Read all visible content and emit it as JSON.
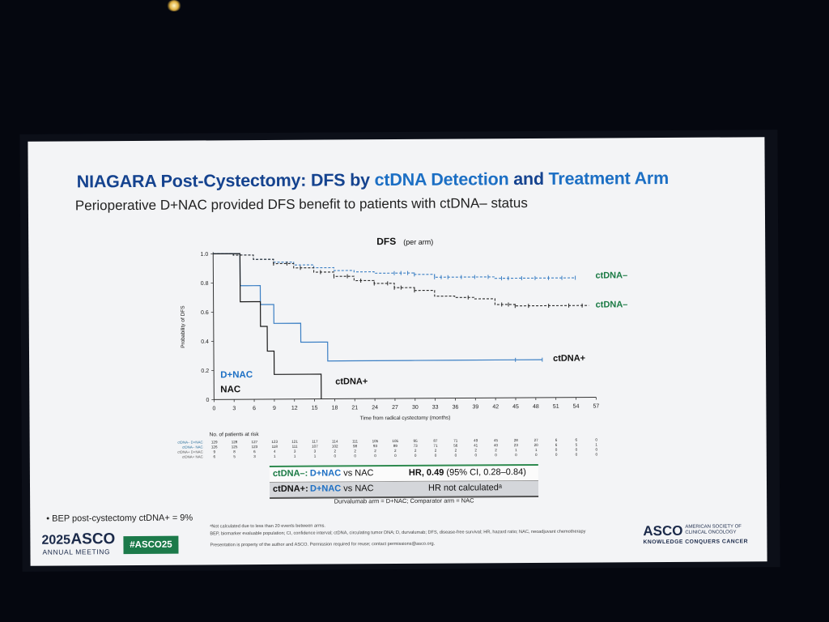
{
  "slide": {
    "title_a": "NIAGARA Post-Cystectomy: DFS by ",
    "title_b": "ctDNA Detection",
    "title_c": " and ",
    "title_d": "Treatment Arm",
    "subtitle": "Perioperative D+NAC provided DFS benefit to patients with ctDNA– status",
    "bullet": "• BEP post-cystectomy ctDNA+ = 9%",
    "footnote_1": "ᵃNot calculated due to less than 20 events between arms.",
    "footnote_2": "BEP, biomarker evaluable population; CI, confidence interval; ctDNA, circulating tumor DNA; D, durvalumab; DFS, disease-free survival; HR, hazard ratio; NAC, neoadjuvant chemotherapy",
    "footnote_3": "Presentation is property of the author and ASCO. Permission required for reuse; contact permissions@asco.org.",
    "logo_year": "2025",
    "logo_asco": "ASCO",
    "logo_meeting": "ANNUAL MEETING",
    "hashtag": "#ASCO25",
    "logo_right_asco": "ASCO",
    "logo_right_society_1": "AMERICAN SOCIETY OF",
    "logo_right_society_2": "CLINICAL ONCOLOGY",
    "logo_right_tagline": "KNOWLEDGE CONQUERS CANCER",
    "colors": {
      "title": "#15438f",
      "dnac_blue": "#1c6fc4",
      "ctdna_neg_green": "#1a7a44",
      "nac_dark": "#2a2a2a",
      "hashtag_bg": "#1c7a4a"
    }
  },
  "comparison": {
    "row1_label": "ctDNA–:",
    "row1_arm": " D+NAC",
    "row1_vs": " vs NAC",
    "row1_hr_label": "HR, ",
    "row1_hr_value": "0.49",
    "row1_ci": " (95% CI, 0.28–0.84)",
    "row2_label": "ctDNA+:",
    "row2_arm": " D+NAC",
    "row2_vs": " vs NAC",
    "row2_hr": "HR not calculatedᵃ",
    "arms_note": "Durvalumab arm = D+NAC; Comparator arm = NAC"
  },
  "chart_data": {
    "type": "line",
    "title": "DFS",
    "subtitle": "(per arm)",
    "xlabel": "Time from radical cystectomy (months)",
    "ylabel": "Probability of DFS",
    "xlim": [
      0,
      57
    ],
    "ylim": [
      0,
      1.0
    ],
    "x_ticks": [
      0,
      3,
      6,
      9,
      12,
      15,
      18,
      21,
      24,
      27,
      30,
      33,
      36,
      39,
      42,
      45,
      48,
      51,
      54,
      57
    ],
    "y_ticks": [
      0,
      0.2,
      0.4,
      0.6,
      0.8,
      1.0
    ],
    "y_tick_labels": [
      "0",
      "0.2",
      "0.4",
      "0.6",
      "0.8",
      "1.0"
    ],
    "series": [
      {
        "name": "ctDNA– D+NAC",
        "label": "ctDNA–",
        "color": "#3b7fc4",
        "dash": true,
        "x": [
          0,
          3,
          6,
          9,
          12,
          15,
          18,
          21,
          24,
          27,
          30,
          33,
          36,
          39,
          42,
          45,
          48,
          51,
          54
        ],
        "y": [
          1.0,
          0.99,
          0.96,
          0.94,
          0.92,
          0.9,
          0.88,
          0.87,
          0.86,
          0.86,
          0.85,
          0.83,
          0.83,
          0.83,
          0.82,
          0.82,
          0.82,
          0.82,
          0.82
        ],
        "censor": [
          27,
          28,
          29,
          30,
          33,
          34,
          35,
          37,
          39,
          41,
          43,
          44,
          46,
          48,
          50,
          52,
          54
        ]
      },
      {
        "name": "ctDNA– NAC",
        "label": "ctDNA–",
        "color": "#2a2a2a",
        "dash": true,
        "x": [
          0,
          3,
          6,
          9,
          12,
          15,
          18,
          21,
          24,
          27,
          30,
          33,
          36,
          39,
          42,
          45,
          48,
          51,
          54,
          56
        ],
        "y": [
          1.0,
          0.99,
          0.96,
          0.93,
          0.9,
          0.87,
          0.84,
          0.81,
          0.79,
          0.76,
          0.74,
          0.7,
          0.69,
          0.68,
          0.64,
          0.63,
          0.63,
          0.63,
          0.63,
          0.63
        ],
        "censor": [
          9,
          11,
          13,
          16,
          18,
          20,
          22,
          24,
          26,
          27,
          28,
          30,
          38,
          43,
          44,
          45,
          47,
          50,
          53,
          55
        ]
      },
      {
        "name": "ctDNA+ D+NAC",
        "label": "ctDNA+",
        "color": "#3b7fc4",
        "dash": false,
        "x": [
          0,
          3,
          4,
          5,
          6,
          7,
          8,
          9,
          13,
          16,
          17,
          21,
          24,
          30,
          36,
          42,
          45,
          49
        ],
        "y": [
          1.0,
          1.0,
          0.78,
          0.78,
          0.78,
          0.65,
          0.65,
          0.52,
          0.39,
          0.39,
          0.26,
          0.26,
          0.26,
          0.26,
          0.26,
          0.26,
          0.26,
          0.26
        ],
        "censor": [
          45,
          49
        ]
      },
      {
        "name": "ctDNA+ NAC",
        "label": "ctDNA+",
        "color": "#1a1a1a",
        "dash": false,
        "x": [
          0,
          3,
          4,
          6,
          7,
          8,
          9,
          16
        ],
        "y": [
          1.0,
          1.0,
          0.67,
          0.67,
          0.5,
          0.33,
          0.17,
          0.0
        ],
        "censor": []
      }
    ],
    "end_labels": [
      {
        "text": "ctDNA–",
        "color": "#1a7a44"
      },
      {
        "text": "ctDNA–",
        "color": "#1a7a44"
      },
      {
        "text": "ctDNA+",
        "color": "#111111"
      },
      {
        "text": "ctDNA+",
        "color": "#111111"
      }
    ],
    "inline_legend": [
      {
        "text": "D+NAC",
        "color": "#1c6fc4"
      },
      {
        "text": "NAC",
        "color": "#111111"
      }
    ],
    "risk_table": {
      "title": "No. of patients at risk",
      "rows": [
        {
          "label": "ctDNA– D+NAC",
          "values": [
            "129",
            "128",
            "127",
            "123",
            "121",
            "117",
            "114",
            "111",
            "105",
            "105",
            "95",
            "87",
            "71",
            "49",
            "45",
            "28",
            "27",
            "6",
            "6",
            "0"
          ]
        },
        {
          "label": "ctDNA– NAC",
          "values": [
            "126",
            "125",
            "123",
            "118",
            "111",
            "107",
            "102",
            "98",
            "93",
            "89",
            "73",
            "71",
            "56",
            "41",
            "40",
            "23",
            "20",
            "6",
            "5",
            "1"
          ]
        },
        {
          "label": "ctDNA+ D+NAC",
          "values": [
            "9",
            "8",
            "6",
            "4",
            "3",
            "3",
            "2",
            "2",
            "2",
            "2",
            "2",
            "2",
            "2",
            "2",
            "2",
            "1",
            "1",
            "0",
            "0",
            "0"
          ]
        },
        {
          "label": "ctDNA+ NAC",
          "values": [
            "6",
            "5",
            "3",
            "1",
            "1",
            "1",
            "0",
            "0",
            "0",
            "0",
            "0",
            "0",
            "0",
            "0",
            "0",
            "0",
            "0",
            "0",
            "0",
            "0"
          ]
        }
      ]
    }
  }
}
